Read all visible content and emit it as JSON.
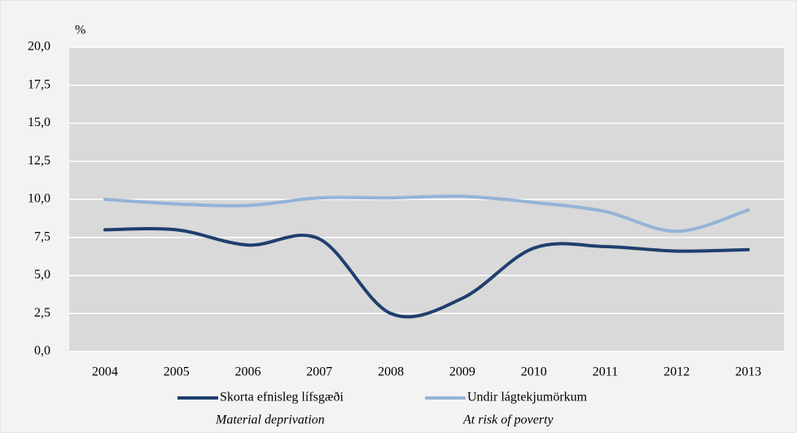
{
  "chart_data": {
    "type": "line",
    "y_label": "%",
    "categories": [
      "2004",
      "2005",
      "2006",
      "2007",
      "2008",
      "2009",
      "2010",
      "2011",
      "2012",
      "2013"
    ],
    "series": [
      {
        "name": "Skorta efnisleg lífsgæði",
        "subname": "Material deprivation",
        "color": "#1f3f6e",
        "values": [
          8.0,
          8.0,
          7.0,
          7.4,
          2.5,
          3.5,
          6.8,
          6.9,
          6.6,
          6.7
        ]
      },
      {
        "name": "Undir lágtekjumörkum",
        "subname": "At risk of poverty",
        "color": "#95b3d7",
        "values": [
          10.0,
          9.7,
          9.6,
          10.1,
          10.1,
          10.2,
          9.8,
          9.2,
          7.9,
          9.3
        ]
      }
    ],
    "ylim": [
      0,
      20
    ],
    "yticks": [
      {
        "value": 0,
        "label": "0,0"
      },
      {
        "value": 2.5,
        "label": "2,5"
      },
      {
        "value": 5,
        "label": "5,0"
      },
      {
        "value": 7.5,
        "label": "7,5"
      },
      {
        "value": 10,
        "label": "10,0"
      },
      {
        "value": 12.5,
        "label": "12,5"
      },
      {
        "value": 15,
        "label": "15,0"
      },
      {
        "value": 17.5,
        "label": "17,5"
      },
      {
        "value": 20,
        "label": "20,0"
      }
    ],
    "grid": true
  }
}
